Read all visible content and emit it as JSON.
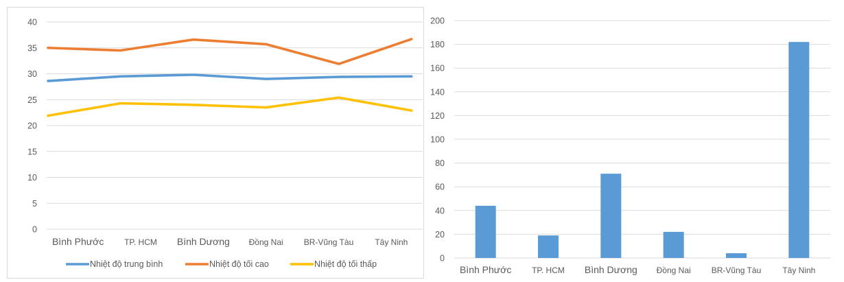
{
  "chart_data": [
    {
      "type": "line",
      "categories": [
        "Bình Phước",
        "TP. HCM",
        "Bình Dương",
        "Đồng Nai",
        "BR-Vũng Tàu",
        "Tây Ninh"
      ],
      "ylim": [
        0,
        40
      ],
      "yticks": [
        0,
        5,
        10,
        15,
        20,
        25,
        30,
        35,
        40
      ],
      "grid": true,
      "legend": "bottom",
      "series": [
        {
          "name": "Nhiệt độ trung bình",
          "color": "#5b9bd5",
          "values": [
            28.6,
            29.5,
            29.8,
            29.0,
            29.4,
            29.5
          ]
        },
        {
          "name": "Nhiệt độ tối cao",
          "color": "#ed7d31",
          "values": [
            35.0,
            34.5,
            36.6,
            35.7,
            31.9,
            36.7
          ]
        },
        {
          "name": "Nhiệt độ tối thấp",
          "color": "#ffc000",
          "values": [
            21.9,
            24.3,
            24.0,
            23.5,
            25.4,
            22.9
          ]
        }
      ]
    },
    {
      "type": "bar",
      "categories": [
        "Bình Phước",
        "TP. HCM",
        "Bình Dương",
        "Đồng Nai",
        "BR-Vũng Tàu",
        "Tây Ninh"
      ],
      "values": [
        44,
        19,
        71,
        22,
        4,
        182
      ],
      "color": "#5b9bd5",
      "ylim": [
        0,
        200
      ],
      "yticks": [
        0,
        20,
        40,
        60,
        80,
        100,
        120,
        140,
        160,
        180,
        200
      ],
      "grid": true
    }
  ]
}
